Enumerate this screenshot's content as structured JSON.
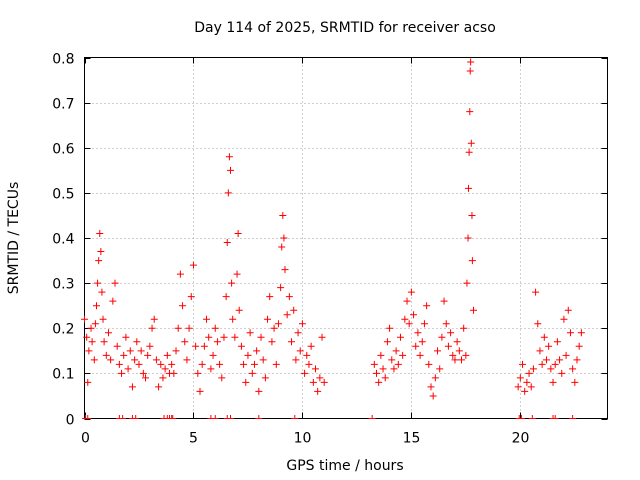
{
  "chart_data": {
    "type": "scatter",
    "title": "Day 114 of 2025, SRMTID for receiver acso",
    "xlabel": "GPS time / hours",
    "ylabel": "SRMTID / TECUs",
    "xlim": [
      0,
      24
    ],
    "ylim": [
      0,
      0.8
    ],
    "xticks": [
      0,
      5,
      10,
      15,
      20
    ],
    "xtick_labels": [
      "0",
      "5",
      "10",
      "15",
      "20"
    ],
    "yticks": [
      0,
      0.1,
      0.2,
      0.3,
      0.4,
      0.5,
      0.6,
      0.7,
      0.8
    ],
    "ytick_labels": [
      "0",
      "0.1",
      "0.2",
      "0.3",
      "0.4",
      "0.5",
      "0.6",
      "0.7",
      "0.8"
    ],
    "grid": true,
    "marker": "+",
    "color": "#ff0000",
    "series": [
      {
        "name": "acso",
        "points": [
          [
            0.0,
            0.22
          ],
          [
            0.1,
            0.18
          ],
          [
            0.15,
            0.08
          ],
          [
            0.2,
            0.15
          ],
          [
            0.3,
            0.2
          ],
          [
            0.35,
            0.17
          ],
          [
            0.45,
            0.13
          ],
          [
            0.5,
            0.21
          ],
          [
            0.55,
            0.25
          ],
          [
            0.6,
            0.3
          ],
          [
            0.65,
            0.35
          ],
          [
            0.7,
            0.41
          ],
          [
            0.75,
            0.37
          ],
          [
            0.8,
            0.28
          ],
          [
            0.85,
            0.22
          ],
          [
            0.9,
            0.17
          ],
          [
            1.0,
            0.14
          ],
          [
            1.1,
            0.19
          ],
          [
            1.2,
            0.13
          ],
          [
            1.3,
            0.26
          ],
          [
            1.4,
            0.3
          ],
          [
            1.5,
            0.16
          ],
          [
            1.6,
            0.12
          ],
          [
            1.7,
            0.1
          ],
          [
            1.8,
            0.14
          ],
          [
            1.9,
            0.18
          ],
          [
            2.0,
            0.11
          ],
          [
            2.1,
            0.15
          ],
          [
            2.2,
            0.07
          ],
          [
            2.3,
            0.13
          ],
          [
            2.4,
            0.17
          ],
          [
            2.5,
            0.12
          ],
          [
            2.6,
            0.15
          ],
          [
            2.7,
            0.1
          ],
          [
            2.8,
            0.09
          ],
          [
            2.9,
            0.14
          ],
          [
            3.0,
            0.16
          ],
          [
            3.1,
            0.2
          ],
          [
            3.2,
            0.22
          ],
          [
            3.3,
            0.13
          ],
          [
            3.4,
            0.07
          ],
          [
            3.5,
            0.12
          ],
          [
            3.6,
            0.09
          ],
          [
            3.7,
            0.11
          ],
          [
            3.8,
            0.14
          ],
          [
            3.9,
            0.1
          ],
          [
            4.0,
            0.12
          ],
          [
            4.1,
            0.1
          ],
          [
            4.2,
            0.15
          ],
          [
            4.3,
            0.2
          ],
          [
            4.4,
            0.32
          ],
          [
            4.5,
            0.25
          ],
          [
            4.6,
            0.17
          ],
          [
            4.7,
            0.13
          ],
          [
            4.8,
            0.2
          ],
          [
            4.9,
            0.27
          ],
          [
            5.0,
            0.34
          ],
          [
            5.1,
            0.16
          ],
          [
            5.2,
            0.1
          ],
          [
            5.3,
            0.06
          ],
          [
            5.4,
            0.12
          ],
          [
            5.5,
            0.16
          ],
          [
            5.6,
            0.22
          ],
          [
            5.7,
            0.18
          ],
          [
            5.8,
            0.11
          ],
          [
            5.9,
            0.14
          ],
          [
            6.0,
            0.2
          ],
          [
            6.1,
            0.17
          ],
          [
            6.2,
            0.12
          ],
          [
            6.3,
            0.09
          ],
          [
            6.4,
            0.18
          ],
          [
            6.5,
            0.27
          ],
          [
            6.55,
            0.39
          ],
          [
            6.6,
            0.5
          ],
          [
            6.65,
            0.58
          ],
          [
            6.7,
            0.55
          ],
          [
            6.75,
            0.3
          ],
          [
            6.8,
            0.22
          ],
          [
            6.9,
            0.18
          ],
          [
            7.0,
            0.32
          ],
          [
            7.05,
            0.41
          ],
          [
            7.1,
            0.24
          ],
          [
            7.2,
            0.16
          ],
          [
            7.3,
            0.12
          ],
          [
            7.4,
            0.08
          ],
          [
            7.5,
            0.14
          ],
          [
            7.6,
            0.19
          ],
          [
            7.7,
            0.1
          ],
          [
            7.8,
            0.12
          ],
          [
            7.9,
            0.15
          ],
          [
            8.0,
            0.06
          ],
          [
            8.1,
            0.18
          ],
          [
            8.2,
            0.13
          ],
          [
            8.3,
            0.09
          ],
          [
            8.4,
            0.22
          ],
          [
            8.5,
            0.27
          ],
          [
            8.6,
            0.17
          ],
          [
            8.7,
            0.2
          ],
          [
            8.8,
            0.12
          ],
          [
            8.9,
            0.21
          ],
          [
            9.0,
            0.29
          ],
          [
            9.05,
            0.38
          ],
          [
            9.1,
            0.45
          ],
          [
            9.15,
            0.4
          ],
          [
            9.2,
            0.33
          ],
          [
            9.3,
            0.23
          ],
          [
            9.4,
            0.27
          ],
          [
            9.5,
            0.17
          ],
          [
            9.6,
            0.24
          ],
          [
            9.7,
            0.13
          ],
          [
            9.8,
            0.19
          ],
          [
            9.9,
            0.15
          ],
          [
            10.0,
            0.21
          ],
          [
            10.1,
            0.1
          ],
          [
            10.2,
            0.14
          ],
          [
            10.3,
            0.12
          ],
          [
            10.4,
            0.16
          ],
          [
            10.5,
            0.08
          ],
          [
            10.6,
            0.11
          ],
          [
            10.7,
            0.06
          ],
          [
            10.8,
            0.09
          ],
          [
            10.9,
            0.18
          ],
          [
            11.0,
            0.08
          ],
          [
            13.3,
            0.12
          ],
          [
            13.4,
            0.1
          ],
          [
            13.5,
            0.08
          ],
          [
            13.6,
            0.14
          ],
          [
            13.7,
            0.11
          ],
          [
            13.8,
            0.09
          ],
          [
            13.9,
            0.17
          ],
          [
            14.0,
            0.2
          ],
          [
            14.1,
            0.13
          ],
          [
            14.2,
            0.11
          ],
          [
            14.3,
            0.15
          ],
          [
            14.4,
            0.12
          ],
          [
            14.5,
            0.18
          ],
          [
            14.6,
            0.14
          ],
          [
            14.7,
            0.22
          ],
          [
            14.8,
            0.26
          ],
          [
            14.9,
            0.21
          ],
          [
            15.0,
            0.28
          ],
          [
            15.1,
            0.23
          ],
          [
            15.2,
            0.16
          ],
          [
            15.3,
            0.19
          ],
          [
            15.4,
            0.14
          ],
          [
            15.5,
            0.17
          ],
          [
            15.6,
            0.21
          ],
          [
            15.7,
            0.25
          ],
          [
            15.8,
            0.12
          ],
          [
            15.9,
            0.07
          ],
          [
            16.0,
            0.05
          ],
          [
            16.1,
            0.09
          ],
          [
            16.2,
            0.15
          ],
          [
            16.3,
            0.11
          ],
          [
            16.4,
            0.18
          ],
          [
            16.5,
            0.26
          ],
          [
            16.6,
            0.21
          ],
          [
            16.7,
            0.16
          ],
          [
            16.8,
            0.19
          ],
          [
            16.9,
            0.14
          ],
          [
            17.0,
            0.13
          ],
          [
            17.1,
            0.17
          ],
          [
            17.2,
            0.15
          ],
          [
            17.3,
            0.13
          ],
          [
            17.4,
            0.2
          ],
          [
            17.5,
            0.14
          ],
          [
            17.55,
            0.3
          ],
          [
            17.6,
            0.4
          ],
          [
            17.62,
            0.51
          ],
          [
            17.65,
            0.59
          ],
          [
            17.68,
            0.68
          ],
          [
            17.7,
            0.77
          ],
          [
            17.72,
            0.79
          ],
          [
            17.75,
            0.61
          ],
          [
            17.78,
            0.45
          ],
          [
            17.8,
            0.35
          ],
          [
            17.85,
            0.24
          ],
          [
            19.9,
            0.07
          ],
          [
            20.0,
            0.09
          ],
          [
            20.1,
            0.12
          ],
          [
            20.2,
            0.06
          ],
          [
            20.3,
            0.08
          ],
          [
            20.4,
            0.1
          ],
          [
            20.5,
            0.07
          ],
          [
            20.6,
            0.11
          ],
          [
            20.7,
            0.28
          ],
          [
            20.8,
            0.21
          ],
          [
            20.9,
            0.15
          ],
          [
            21.0,
            0.12
          ],
          [
            21.1,
            0.18
          ],
          [
            21.2,
            0.13
          ],
          [
            21.3,
            0.16
          ],
          [
            21.4,
            0.11
          ],
          [
            21.5,
            0.08
          ],
          [
            21.6,
            0.12
          ],
          [
            21.7,
            0.17
          ],
          [
            21.8,
            0.13
          ],
          [
            21.9,
            0.1
          ],
          [
            22.0,
            0.22
          ],
          [
            22.1,
            0.14
          ],
          [
            22.2,
            0.24
          ],
          [
            22.3,
            0.19
          ],
          [
            22.4,
            0.11
          ],
          [
            22.5,
            0.08
          ],
          [
            22.6,
            0.13
          ],
          [
            22.7,
            0.16
          ],
          [
            22.8,
            0.19
          ]
        ],
        "zero_markers": [
          0.05,
          0.15,
          1.6,
          1.75,
          2.2,
          2.35,
          3.65,
          3.8,
          3.9,
          4.0,
          4.05,
          5.8,
          6.0,
          6.55,
          6.7,
          8.0,
          9.65,
          13.2,
          19.95,
          20.05,
          20.55,
          21.5,
          21.6,
          22.4
        ]
      }
    ]
  }
}
